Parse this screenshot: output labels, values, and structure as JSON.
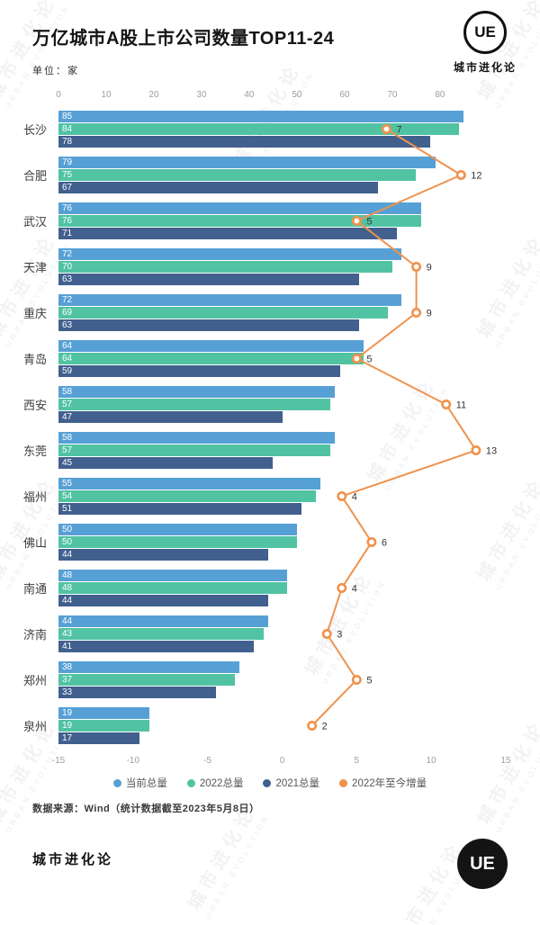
{
  "title": "万亿城市A股上市公司数量TOP11-24",
  "unit_label": "单位：家",
  "logo": {
    "text": "UE",
    "brand": "城市进化论"
  },
  "watermark": {
    "line1": "城市进化论",
    "line2": "URBAN EVOLUTION"
  },
  "source": "数据来源：Wind（统计数据截至2023年5月8日）",
  "footer": {
    "brand": "城市进化论",
    "logo_text": "UE"
  },
  "colors": {
    "current": "#57a0d6",
    "y2022": "#51c3a3",
    "y2021": "#41608e",
    "delta": "#f0924c"
  },
  "chart_data": {
    "type": "bar",
    "orientation": "horizontal",
    "title": "万亿城市A股上市公司数量TOP11-24",
    "unit": "家",
    "categories": [
      "长沙",
      "合肥",
      "武汉",
      "天津",
      "重庆",
      "青岛",
      "西安",
      "东莞",
      "福州",
      "佛山",
      "南通",
      "济南",
      "郑州",
      "泉州"
    ],
    "series": [
      {
        "name": "当前总量",
        "color": "#57a0d6",
        "values": [
          85,
          79,
          76,
          72,
          72,
          64,
          58,
          58,
          55,
          50,
          48,
          44,
          38,
          19
        ]
      },
      {
        "name": "2022总量",
        "color": "#51c3a3",
        "values": [
          84,
          75,
          76,
          70,
          69,
          64,
          57,
          57,
          54,
          50,
          48,
          43,
          37,
          19
        ]
      },
      {
        "name": "2021总量",
        "color": "#41608e",
        "values": [
          78,
          67,
          71,
          63,
          63,
          59,
          47,
          45,
          51,
          44,
          44,
          41,
          33,
          17
        ]
      }
    ],
    "line_series": {
      "name": "2022年至今增量",
      "color": "#f0924c",
      "axis": "bottom",
      "values": [
        7,
        12,
        5,
        9,
        9,
        5,
        11,
        13,
        4,
        6,
        4,
        3,
        5,
        2
      ]
    },
    "top_axis": {
      "ticks": [
        0,
        10,
        20,
        30,
        40,
        50,
        60,
        70,
        80
      ],
      "range": [
        0,
        93.8
      ]
    },
    "bottom_axis": {
      "ticks": [
        -15,
        -10,
        -5,
        0,
        5,
        10,
        15
      ],
      "range": [
        -15,
        15
      ]
    },
    "legend": [
      "当前总量",
      "2022总量",
      "2021总量",
      "2022年至今增量"
    ],
    "grid": false,
    "legend_position": "bottom"
  }
}
